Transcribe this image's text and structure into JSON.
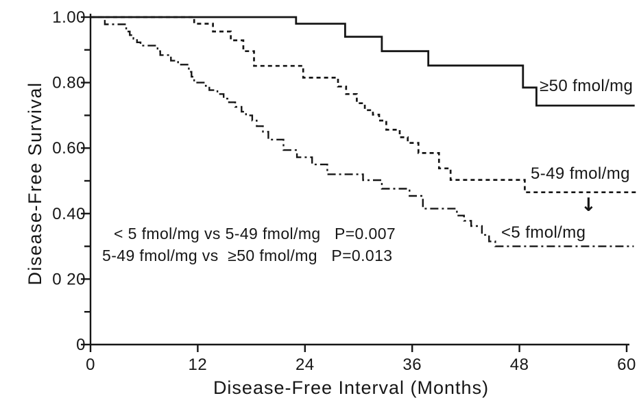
{
  "figure": {
    "background_color": "#ffffff",
    "ink_color": "#161616"
  },
  "icons": {
    "down_arrow": "↓"
  },
  "chart_data": {
    "type": "line",
    "subtype": "kaplan-meier-step",
    "title": "",
    "xlabel": "Disease-Free Interval (Months)",
    "ylabel": "Disease-Free Survival",
    "xlim": [
      0,
      60
    ],
    "ylim": [
      0,
      1.0
    ],
    "grid": false,
    "legend_position": "labels-at-line-ends",
    "xticks": [
      {
        "v": 0,
        "label": "0"
      },
      {
        "v": 12,
        "label": "12"
      },
      {
        "v": 24,
        "label": "24"
      },
      {
        "v": 36,
        "label": "36"
      },
      {
        "v": 48,
        "label": "48"
      },
      {
        "v": 60,
        "label": "60"
      }
    ],
    "yticks": [
      {
        "v": 1.0,
        "label": "1.00"
      },
      {
        "v": 0.8,
        "label": "0.80"
      },
      {
        "v": 0.6,
        "label": "0.60"
      },
      {
        "v": 0.4,
        "label": "0.40"
      },
      {
        "v": 0.2,
        "label": "0 20"
      },
      {
        "v": 0.0,
        "label": "0"
      }
    ],
    "yminor": [
      0.9,
      0.7,
      0.5,
      0.3,
      0.1
    ],
    "annotations": [
      "< 5 fmol/mg vs 5-49 fmol/mg   P=0.007",
      "5-49 fmol/mg vs  ≥50 fmol/mg   P=0.013"
    ],
    "series": [
      {
        "name": "≥50 fmol/mg",
        "style": "solid",
        "end_month": 60.9,
        "steps": [
          [
            0,
            1.0
          ],
          [
            23.0,
            0.98
          ],
          [
            28.5,
            0.94
          ],
          [
            32.6,
            0.896
          ],
          [
            37.8,
            0.852
          ],
          [
            48.4,
            0.785
          ],
          [
            49.9,
            0.73
          ]
        ]
      },
      {
        "name": "5-49 fmol/mg",
        "style": "dashed",
        "end_month": 61.2,
        "steps": [
          [
            0,
            1.0
          ],
          [
            11.6,
            0.98
          ],
          [
            13.7,
            0.956
          ],
          [
            15.7,
            0.929
          ],
          [
            17.1,
            0.896
          ],
          [
            18.3,
            0.851
          ],
          [
            23.8,
            0.815
          ],
          [
            27.7,
            0.788
          ],
          [
            28.6,
            0.765
          ],
          [
            29.8,
            0.737
          ],
          [
            30.7,
            0.716
          ],
          [
            31.6,
            0.702
          ],
          [
            32.3,
            0.684
          ],
          [
            33.1,
            0.656
          ],
          [
            34.6,
            0.633
          ],
          [
            35.5,
            0.616
          ],
          [
            36.7,
            0.585
          ],
          [
            39.0,
            0.538
          ],
          [
            40.3,
            0.503
          ],
          [
            48.6,
            0.465
          ]
        ]
      },
      {
        "name": "<5 fmol/mg",
        "style": "dashdot",
        "end_month": 60.8,
        "steps": [
          [
            0,
            1.0
          ],
          [
            1.6,
            0.978
          ],
          [
            4.0,
            0.956
          ],
          [
            4.4,
            0.945
          ],
          [
            4.8,
            0.934
          ],
          [
            5.2,
            0.923
          ],
          [
            5.6,
            0.913
          ],
          [
            7.5,
            0.896
          ],
          [
            7.8,
            0.884
          ],
          [
            9.0,
            0.867
          ],
          [
            9.8,
            0.855
          ],
          [
            11.0,
            0.833
          ],
          [
            11.3,
            0.818
          ],
          [
            11.6,
            0.8
          ],
          [
            12.9,
            0.79
          ],
          [
            13.3,
            0.777
          ],
          [
            14.2,
            0.765
          ],
          [
            14.9,
            0.751
          ],
          [
            15.5,
            0.74
          ],
          [
            16.2,
            0.726
          ],
          [
            16.9,
            0.711
          ],
          [
            17.4,
            0.7
          ],
          [
            18.1,
            0.684
          ],
          [
            18.6,
            0.667
          ],
          [
            19.3,
            0.65
          ],
          [
            19.9,
            0.626
          ],
          [
            21.6,
            0.594
          ],
          [
            23.1,
            0.572
          ],
          [
            24.8,
            0.55
          ],
          [
            26.5,
            0.52
          ],
          [
            30.5,
            0.502
          ],
          [
            32.6,
            0.476
          ],
          [
            35.7,
            0.454
          ],
          [
            37.2,
            0.415
          ],
          [
            41.0,
            0.394
          ],
          [
            41.8,
            0.378
          ],
          [
            42.6,
            0.362
          ],
          [
            43.8,
            0.335
          ],
          [
            44.6,
            0.315
          ],
          [
            45.3,
            0.3
          ]
        ]
      }
    ]
  }
}
